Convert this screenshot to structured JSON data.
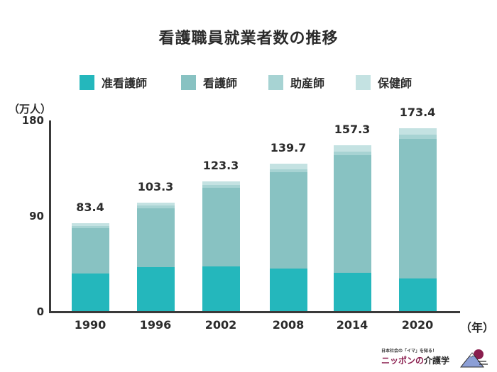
{
  "title": "看護職員就業者数の推移",
  "legend": [
    {
      "label": "准看護師",
      "color": "#24b7bc"
    },
    {
      "label": "看護師",
      "color": "#88c2c2"
    },
    {
      "label": "助産師",
      "color": "#a7d3d3"
    },
    {
      "label": "保健師",
      "color": "#c4e2e2"
    }
  ],
  "axis": {
    "y_unit": "（万人）",
    "x_unit": "（年）",
    "y_ticks": [
      "180",
      "90",
      "0"
    ]
  },
  "logo": {
    "tagline": "日本社会の「イマ」を知る！",
    "name_colored": "ニッポンの",
    "name_dark": "介護学"
  },
  "chart_data": {
    "type": "bar",
    "stacked": true,
    "title": "看護職員就業者数の推移",
    "xlabel": "（年）",
    "ylabel": "（万人）",
    "ylim": [
      0,
      180
    ],
    "yticks": [
      0,
      90,
      180
    ],
    "grid": false,
    "legend_position": "top",
    "categories": [
      "1990",
      "1996",
      "2002",
      "2008",
      "2014",
      "2020"
    ],
    "series": [
      {
        "name": "准看護師",
        "color": "#24b7bc",
        "values": [
          36.0,
          41.9,
          43.1,
          40.8,
          36.6,
          31.7
        ]
      },
      {
        "name": "看護師",
        "color": "#88c2c2",
        "values": [
          43.0,
          56.1,
          73.9,
          91.1,
          111.2,
          131.5
        ]
      },
      {
        "name": "助産師",
        "color": "#a7d3d3",
        "values": [
          2.2,
          2.2,
          2.5,
          2.7,
          3.7,
          3.9
        ]
      },
      {
        "name": "保健師",
        "color": "#c4e2e2",
        "values": [
          2.2,
          3.1,
          3.8,
          5.1,
          5.8,
          6.3
        ]
      }
    ],
    "totals": [
      "83.4",
      "103.3",
      "123.3",
      "139.7",
      "157.3",
      "173.4"
    ]
  }
}
